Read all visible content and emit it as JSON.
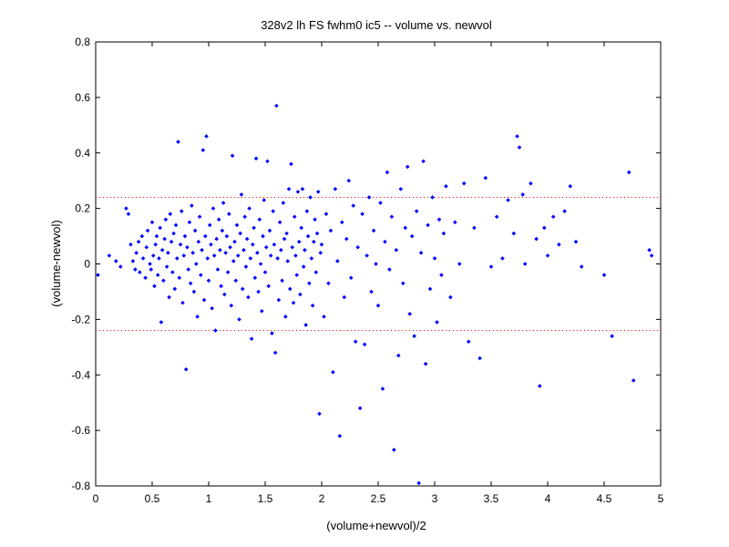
{
  "chart_data": {
    "type": "scatter",
    "title": "328v2 lh FS fwhm0 ic5 -- volume vs. newvol",
    "xlabel": "(volume+newvol)/2",
    "ylabel": "(volume-newvol)",
    "xlim": [
      0,
      5
    ],
    "ylim": [
      -0.8,
      0.8
    ],
    "xticks": [
      "0",
      "0.5",
      "1",
      "1.5",
      "2",
      "2.5",
      "3",
      "3.5",
      "4",
      "4.5",
      "5"
    ],
    "yticks": [
      "-0.8",
      "-0.6",
      "-0.4",
      "-0.2",
      "0",
      "0.2",
      "0.4",
      "0.6",
      "0.8"
    ],
    "grid": false,
    "marker_color": "#0000ff",
    "reference_lines": {
      "upper": 0.24,
      "lower": -0.24,
      "color": "#ff0000",
      "style": "dotted"
    },
    "points": [
      [
        0.02,
        -0.04
      ],
      [
        0.12,
        0.03
      ],
      [
        0.18,
        0.01
      ],
      [
        0.22,
        -0.01
      ],
      [
        0.27,
        0.2
      ],
      [
        0.29,
        0.18
      ],
      [
        0.31,
        0.07
      ],
      [
        0.33,
        0.01
      ],
      [
        0.35,
        -0.02
      ],
      [
        0.36,
        0.04
      ],
      [
        0.38,
        0.08
      ],
      [
        0.39,
        -0.03
      ],
      [
        0.41,
        0.1
      ],
      [
        0.42,
        0.02
      ],
      [
        0.44,
        -0.05
      ],
      [
        0.45,
        0.06
      ],
      [
        0.46,
        0.12
      ],
      [
        0.48,
        0.0
      ],
      [
        0.49,
        -0.02
      ],
      [
        0.5,
        0.15
      ],
      [
        0.51,
        0.03
      ],
      [
        0.52,
        -0.08
      ],
      [
        0.53,
        0.07
      ],
      [
        0.54,
        0.1
      ],
      [
        0.55,
        -0.04
      ],
      [
        0.56,
        0.02
      ],
      [
        0.57,
        0.13
      ],
      [
        0.58,
        -0.21
      ],
      [
        0.59,
        0.05
      ],
      [
        0.6,
        -0.06
      ],
      [
        0.61,
        0.09
      ],
      [
        0.62,
        0.16
      ],
      [
        0.63,
        -0.01
      ],
      [
        0.64,
        0.04
      ],
      [
        0.65,
        -0.12
      ],
      [
        0.66,
        0.18
      ],
      [
        0.67,
        0.08
      ],
      [
        0.68,
        -0.03
      ],
      [
        0.69,
        0.11
      ],
      [
        0.7,
        -0.09
      ],
      [
        0.71,
        0.14
      ],
      [
        0.72,
        0.02
      ],
      [
        0.73,
        0.44
      ],
      [
        0.74,
        -0.05
      ],
      [
        0.75,
        0.07
      ],
      [
        0.76,
        0.19
      ],
      [
        0.77,
        -0.14
      ],
      [
        0.78,
        0.03
      ],
      [
        0.79,
        0.1
      ],
      [
        0.8,
        -0.38
      ],
      [
        0.81,
        0.06
      ],
      [
        0.82,
        -0.02
      ],
      [
        0.83,
        0.15
      ],
      [
        0.84,
        -0.07
      ],
      [
        0.85,
        0.21
      ],
      [
        0.86,
        0.04
      ],
      [
        0.87,
        -0.1
      ],
      [
        0.88,
        0.12
      ],
      [
        0.89,
        0.0
      ],
      [
        0.9,
        -0.19
      ],
      [
        0.91,
        0.08
      ],
      [
        0.92,
        0.17
      ],
      [
        0.93,
        -0.04
      ],
      [
        0.94,
        0.05
      ],
      [
        0.95,
        0.41
      ],
      [
        0.96,
        -0.13
      ],
      [
        0.97,
        0.1
      ],
      [
        0.98,
        0.46
      ],
      [
        0.99,
        0.02
      ],
      [
        1.0,
        -0.06
      ],
      [
        1.01,
        0.14
      ],
      [
        1.02,
        0.07
      ],
      [
        1.03,
        -0.16
      ],
      [
        1.04,
        0.2
      ],
      [
        1.05,
        0.03
      ],
      [
        1.06,
        -0.24
      ],
      [
        1.07,
        0.09
      ],
      [
        1.08,
        -0.02
      ],
      [
        1.09,
        0.16
      ],
      [
        1.1,
        0.05
      ],
      [
        1.11,
        -0.08
      ],
      [
        1.12,
        0.12
      ],
      [
        1.13,
        0.22
      ],
      [
        1.14,
        -0.11
      ],
      [
        1.15,
        0.04
      ],
      [
        1.16,
        0.1
      ],
      [
        1.17,
        -0.03
      ],
      [
        1.18,
        0.18
      ],
      [
        1.19,
        0.06
      ],
      [
        1.2,
        -0.15
      ],
      [
        1.21,
        0.39
      ],
      [
        1.22,
        0.01
      ],
      [
        1.23,
        0.08
      ],
      [
        1.24,
        -0.06
      ],
      [
        1.25,
        0.14
      ],
      [
        1.26,
        0.03
      ],
      [
        1.27,
        -0.2
      ],
      [
        1.28,
        0.11
      ],
      [
        1.29,
        0.25
      ],
      [
        1.3,
        -0.09
      ],
      [
        1.31,
        0.05
      ],
      [
        1.32,
        0.17
      ],
      [
        1.33,
        -0.01
      ],
      [
        1.34,
        0.09
      ],
      [
        1.35,
        -0.12
      ],
      [
        1.36,
        0.2
      ],
      [
        1.37,
        0.02
      ],
      [
        1.38,
        -0.27
      ],
      [
        1.39,
        0.07
      ],
      [
        1.4,
        0.13
      ],
      [
        1.41,
        -0.05
      ],
      [
        1.42,
        0.38
      ],
      [
        1.43,
        0.04
      ],
      [
        1.44,
        -0.1
      ],
      [
        1.45,
        0.16
      ],
      [
        1.46,
        0.0
      ],
      [
        1.47,
        -0.17
      ],
      [
        1.48,
        0.1
      ],
      [
        1.49,
        0.23
      ],
      [
        1.5,
        -0.03
      ],
      [
        1.51,
        0.06
      ],
      [
        1.52,
        0.37
      ],
      [
        1.53,
        -0.08
      ],
      [
        1.54,
        0.12
      ],
      [
        1.55,
        0.03
      ],
      [
        1.56,
        -0.25
      ],
      [
        1.57,
        0.19
      ],
      [
        1.58,
        0.07
      ],
      [
        1.59,
        -0.32
      ],
      [
        1.6,
        0.57
      ],
      [
        1.61,
        0.02
      ],
      [
        1.62,
        -0.13
      ],
      [
        1.63,
        0.15
      ],
      [
        1.64,
        0.05
      ],
      [
        1.65,
        -0.06
      ],
      [
        1.66,
        0.22
      ],
      [
        1.67,
        0.09
      ],
      [
        1.68,
        -0.19
      ],
      [
        1.69,
        0.11
      ],
      [
        1.7,
        0.01
      ],
      [
        1.71,
        0.27
      ],
      [
        1.72,
        -0.09
      ],
      [
        1.73,
        0.36
      ],
      [
        1.74,
        0.06
      ],
      [
        1.75,
        -0.14
      ],
      [
        1.76,
        0.17
      ],
      [
        1.77,
        0.03
      ],
      [
        1.78,
        -0.04
      ],
      [
        1.79,
        0.26
      ],
      [
        1.8,
        0.08
      ],
      [
        1.81,
        -0.11
      ],
      [
        1.82,
        0.13
      ],
      [
        1.83,
        0.27
      ],
      [
        1.84,
        -0.01
      ],
      [
        1.85,
        0.05
      ],
      [
        1.86,
        -0.22
      ],
      [
        1.87,
        0.19
      ],
      [
        1.88,
        0.1
      ],
      [
        1.89,
        -0.07
      ],
      [
        1.9,
        0.24
      ],
      [
        1.91,
        0.02
      ],
      [
        1.92,
        -0.15
      ],
      [
        1.93,
        0.08
      ],
      [
        1.94,
        0.16
      ],
      [
        1.95,
        -0.03
      ],
      [
        1.96,
        0.11
      ],
      [
        1.97,
        0.26
      ],
      [
        1.98,
        -0.54
      ],
      [
        1.99,
        0.04
      ],
      [
        2.0,
        0.07
      ],
      [
        2.02,
        -0.19
      ],
      [
        2.04,
        0.18
      ],
      [
        2.06,
        -0.07
      ],
      [
        2.08,
        0.12
      ],
      [
        2.1,
        -0.39
      ],
      [
        2.12,
        0.27
      ],
      [
        2.14,
        0.01
      ],
      [
        2.16,
        -0.62
      ],
      [
        2.18,
        0.15
      ],
      [
        2.2,
        -0.12
      ],
      [
        2.22,
        0.09
      ],
      [
        2.24,
        0.3
      ],
      [
        2.26,
        -0.05
      ],
      [
        2.28,
        0.21
      ],
      [
        2.3,
        -0.28
      ],
      [
        2.32,
        0.06
      ],
      [
        2.34,
        -0.52
      ],
      [
        2.36,
        0.18
      ],
      [
        2.38,
        -0.29
      ],
      [
        2.4,
        0.03
      ],
      [
        2.42,
        0.24
      ],
      [
        2.44,
        -0.1
      ],
      [
        2.46,
        0.12
      ],
      [
        2.48,
        0.0
      ],
      [
        2.5,
        -0.15
      ],
      [
        2.52,
        0.22
      ],
      [
        2.54,
        -0.45
      ],
      [
        2.56,
        0.08
      ],
      [
        2.58,
        0.33
      ],
      [
        2.6,
        -0.02
      ],
      [
        2.62,
        0.17
      ],
      [
        2.64,
        -0.67
      ],
      [
        2.66,
        0.05
      ],
      [
        2.68,
        -0.33
      ],
      [
        2.7,
        0.27
      ],
      [
        2.72,
        -0.07
      ],
      [
        2.74,
        0.13
      ],
      [
        2.76,
        0.35
      ],
      [
        2.78,
        -0.18
      ],
      [
        2.8,
        0.1
      ],
      [
        2.82,
        -0.26
      ],
      [
        2.84,
        0.19
      ],
      [
        2.86,
        -0.79
      ],
      [
        2.88,
        0.04
      ],
      [
        2.9,
        0.37
      ],
      [
        2.92,
        -0.36
      ],
      [
        2.94,
        0.14
      ],
      [
        2.96,
        -0.09
      ],
      [
        2.98,
        0.24
      ],
      [
        3.0,
        0.02
      ],
      [
        3.02,
        -0.21
      ],
      [
        3.04,
        0.16
      ],
      [
        3.06,
        -0.04
      ],
      [
        3.08,
        0.11
      ],
      [
        3.1,
        0.28
      ],
      [
        3.14,
        -0.12
      ],
      [
        3.18,
        0.15
      ],
      [
        3.22,
        0.0
      ],
      [
        3.26,
        0.29
      ],
      [
        3.3,
        -0.28
      ],
      [
        3.35,
        0.13
      ],
      [
        3.4,
        -0.34
      ],
      [
        3.45,
        0.31
      ],
      [
        3.5,
        -0.01
      ],
      [
        3.55,
        0.17
      ],
      [
        3.6,
        0.02
      ],
      [
        3.65,
        0.23
      ],
      [
        3.7,
        0.11
      ],
      [
        3.73,
        0.46
      ],
      [
        3.75,
        0.42
      ],
      [
        3.78,
        0.25
      ],
      [
        3.8,
        0.0
      ],
      [
        3.85,
        0.29
      ],
      [
        3.9,
        0.09
      ],
      [
        3.93,
        -0.44
      ],
      [
        3.97,
        0.13
      ],
      [
        4.0,
        0.03
      ],
      [
        4.05,
        0.17
      ],
      [
        4.1,
        0.07
      ],
      [
        4.15,
        0.19
      ],
      [
        4.2,
        0.28
      ],
      [
        4.25,
        0.08
      ],
      [
        4.3,
        -0.01
      ],
      [
        4.5,
        -0.04
      ],
      [
        4.57,
        -0.26
      ],
      [
        4.72,
        0.33
      ],
      [
        4.76,
        -0.42
      ],
      [
        4.9,
        0.05
      ],
      [
        4.92,
        0.03
      ]
    ]
  }
}
